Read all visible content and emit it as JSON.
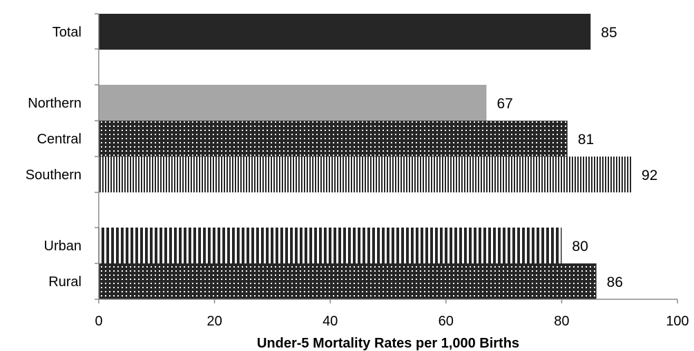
{
  "chart_data": {
    "type": "bar",
    "orientation": "horizontal",
    "title": "",
    "xlabel": "Under-5 Mortality Rates per 1,000 Births",
    "ylabel": "",
    "xlim": [
      0,
      100
    ],
    "x_ticks": [
      0,
      20,
      40,
      60,
      80,
      100
    ],
    "grid": false,
    "categories": [
      "Total",
      "Northern",
      "Central",
      "Southern",
      "Urban",
      "Rural"
    ],
    "values": [
      85,
      67,
      81,
      92,
      80,
      86
    ],
    "groups": [
      [
        "Total"
      ],
      [
        "Northern",
        "Central",
        "Southern"
      ],
      [
        "Urban",
        "Rural"
      ]
    ],
    "fills": [
      {
        "pattern": "solid",
        "color": "#262626"
      },
      {
        "pattern": "solid",
        "color": "#a6a6a6"
      },
      {
        "pattern": "dots",
        "color": "#262626"
      },
      {
        "pattern": "fine-vertical-stripes",
        "color": "#262626"
      },
      {
        "pattern": "wide-vertical-stripes",
        "color": "#262626"
      },
      {
        "pattern": "dots",
        "color": "#262626"
      }
    ]
  }
}
